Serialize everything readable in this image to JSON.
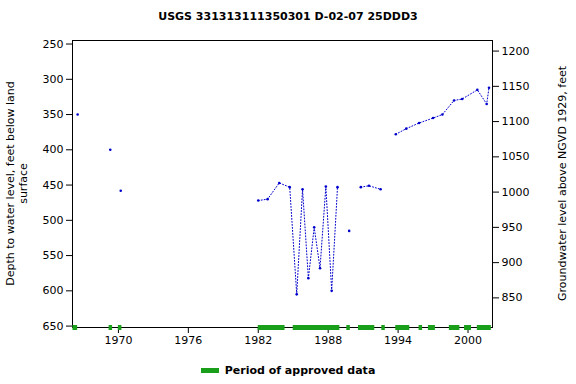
{
  "chart_data": {
    "type": "line",
    "title": "USGS 331313111350301 D-02-07 25DDD3",
    "y_label": [
      "Depth to water level, feet below land",
      "surface"
    ],
    "y2_label": "Groundwater level above NGVD 1929, feet",
    "x": [
      1966.5,
      1967.0,
      1969.3,
      1969.8,
      1970.2,
      1975.0,
      1982.0,
      1982.8,
      1983.8,
      1984.7,
      1985.3,
      1985.8,
      1986.3,
      1986.8,
      1987.3,
      1987.8,
      1988.3,
      1988.8,
      1989.3,
      1989.8,
      1990.3,
      1990.8,
      1991.5,
      1992.5,
      1993.2,
      1993.8,
      1994.7,
      1995.8,
      1997.0,
      1997.8,
      1998.8,
      1999.5,
      2000.8,
      2001.6,
      2001.8
    ],
    "series": [
      {
        "name": "Depth to water level",
        "color": "#0000cc",
        "marker": "dot",
        "line_style": "dotted",
        "values": [
          350,
          null,
          400,
          null,
          458,
          null,
          472,
          470,
          447,
          453,
          605,
          456,
          582,
          510,
          568,
          452,
          600,
          453,
          null,
          515,
          null,
          453,
          451,
          456,
          null,
          378,
          370,
          362,
          355,
          350,
          330,
          328,
          315,
          335,
          312
        ]
      }
    ],
    "approved_periods": {
      "name": "Period of approved data",
      "color": "#1a9f1a",
      "ranges": [
        [
          1966.1,
          1966.5
        ],
        [
          1969.2,
          1969.5
        ],
        [
          1970.0,
          1970.3
        ],
        [
          1982.0,
          1984.3
        ],
        [
          1985.0,
          1989.0
        ],
        [
          1989.6,
          1989.9
        ],
        [
          1990.6,
          1992.0
        ],
        [
          1992.6,
          1992.9
        ],
        [
          1993.8,
          1995.0
        ],
        [
          1995.8,
          1996.1
        ],
        [
          1996.6,
          1997.2
        ],
        [
          1998.4,
          1999.3
        ],
        [
          1999.7,
          2000.3
        ],
        [
          2000.8,
          2002.0
        ]
      ]
    },
    "xlim": [
      1966.06,
      2002.1
    ],
    "xticks": [
      1970,
      1976,
      1982,
      1988,
      1994,
      2000
    ],
    "ylim": [
      245,
      652
    ],
    "yticks": [
      250,
      300,
      350,
      400,
      450,
      500,
      550,
      600,
      650
    ],
    "y2lim": [
      808,
      1215
    ],
    "y2ticks": [
      850,
      900,
      950,
      1000,
      1050,
      1100,
      1150,
      1200
    ],
    "legend": "bottom",
    "grid": false
  }
}
